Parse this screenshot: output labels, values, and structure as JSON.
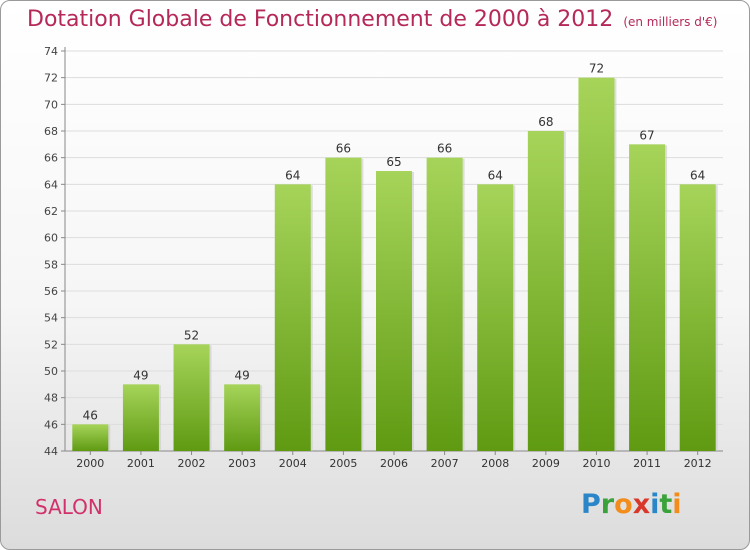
{
  "title": "Dotation Globale de Fonctionnement de 2000 à 2012",
  "subtitle": "(en milliers d'€)",
  "commune": "SALON",
  "logo": {
    "letters": [
      "P",
      "r",
      "o",
      "x",
      "i",
      "t",
      "i"
    ],
    "colors": [
      "#2a86c8",
      "#3aa23a",
      "#f28c1a",
      "#d8372a",
      "#2a86c8",
      "#3aa23a",
      "#f28c1a"
    ]
  },
  "colors": {
    "title": "#b5285a",
    "bar_top": "#a6d45a",
    "bar_bottom": "#5f9a12",
    "grid": "#dddddd"
  },
  "chart_data": {
    "type": "bar",
    "categories": [
      "2000",
      "2001",
      "2002",
      "2003",
      "2004",
      "2005",
      "2006",
      "2007",
      "2008",
      "2009",
      "2010",
      "2011",
      "2012"
    ],
    "values": [
      46,
      49,
      52,
      49,
      64,
      66,
      65,
      66,
      64,
      68,
      72,
      67,
      64
    ],
    "ylim": [
      44,
      74
    ],
    "yticks": [
      44,
      46,
      48,
      50,
      52,
      54,
      56,
      58,
      60,
      62,
      64,
      66,
      68,
      70,
      72,
      74
    ],
    "grid": true
  }
}
